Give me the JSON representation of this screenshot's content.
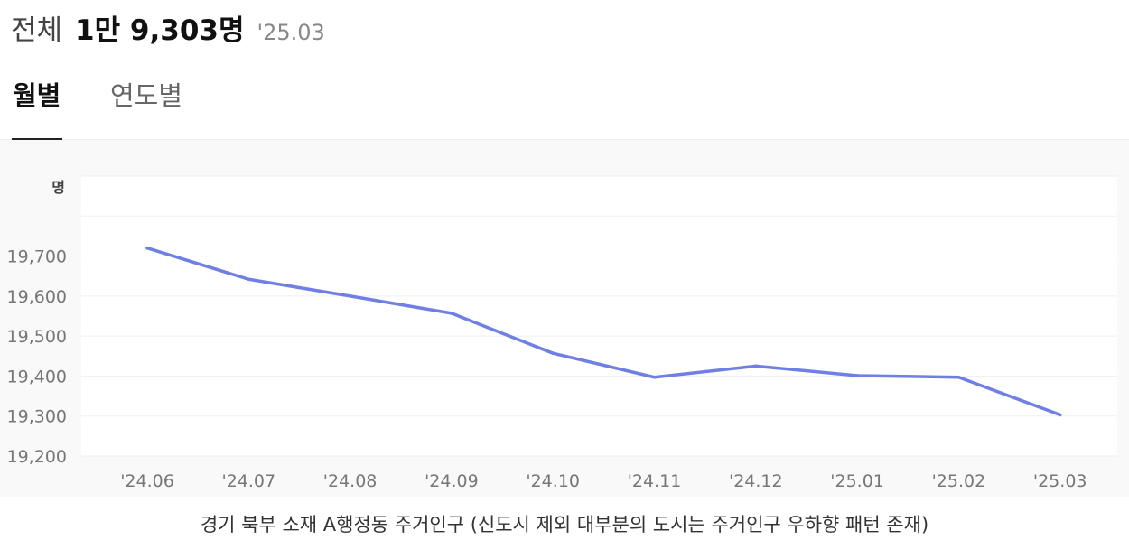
{
  "summary": {
    "lead": "전체",
    "total": "1만 9,303명",
    "period": "'25.03"
  },
  "tabs": [
    {
      "label": "월별",
      "active": true
    },
    {
      "label": "연도별",
      "active": false
    }
  ],
  "chart_data": {
    "type": "line",
    "title": "",
    "xlabel": "",
    "ylabel": "명",
    "categories": [
      "'24.06",
      "'24.07",
      "'24.08",
      "'24.09",
      "'24.10",
      "'24.11",
      "'24.12",
      "'25.01",
      "'25.02",
      "'25.03"
    ],
    "series": [
      {
        "values": [
          19720,
          19642,
          19600,
          19557,
          19457,
          19397,
          19425,
          19401,
          19397,
          19303
        ]
      }
    ],
    "yticks": [
      19200,
      19300,
      19400,
      19500,
      19600,
      19700
    ],
    "ytick_labels": [
      "19,200",
      "19,300",
      "19,400",
      "19,500",
      "19,600",
      "19,700"
    ],
    "ylim": [
      19200,
      19900
    ],
    "grid": true,
    "legend": "none",
    "line_color": "#6f7fe3"
  },
  "caption": "경기 북부 소재 A행정동 주거인구 (신도시 제외 대부분의 도시는 주거인구 우하향 패턴 존재)"
}
